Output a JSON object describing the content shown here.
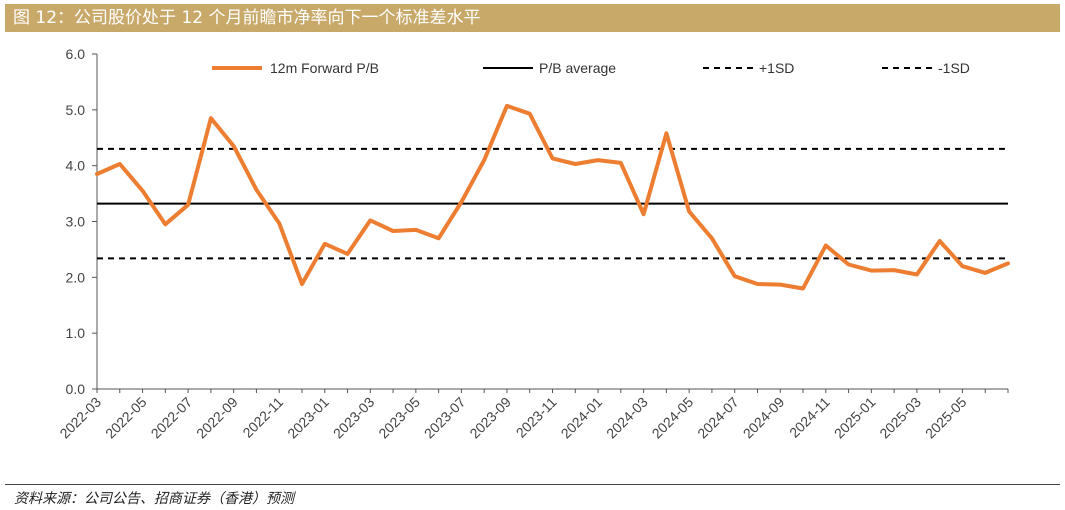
{
  "header": {
    "title": "图 12：公司股价处于 12 个月前瞻市净率向下一个标准差水平"
  },
  "footer": {
    "source": "资料来源：公司公告、招商证券（香港）预测"
  },
  "colors": {
    "series": "#ed7d31",
    "average": "#000000",
    "band": "#000000",
    "title_bg": "#c8a96a"
  },
  "chart_data": {
    "type": "line",
    "title": "",
    "xlabel": "",
    "ylabel": "",
    "ylim": [
      0,
      6
    ],
    "yticks": [
      "0.0",
      "1.0",
      "2.0",
      "3.0",
      "4.0",
      "5.0",
      "6.0"
    ],
    "xtick_labels": [
      "2022-03",
      "2022-05",
      "2022-07",
      "2022-09",
      "2022-11",
      "2023-01",
      "2023-03",
      "2023-05",
      "2023-07",
      "2023-09",
      "2023-11",
      "2024-01",
      "2024-03",
      "2024-05",
      "2024-07",
      "2024-09",
      "2024-11",
      "2025-01",
      "2025-03",
      "2025-05"
    ],
    "legend": [
      "12m Forward P/B",
      "P/B average",
      "+1SD",
      "-1SD"
    ],
    "series": [
      {
        "name": "12m Forward P/B",
        "values": [
          3.85,
          4.03,
          3.55,
          2.95,
          3.3,
          4.85,
          4.35,
          3.57,
          2.97,
          1.88,
          2.6,
          2.42,
          3.02,
          2.83,
          2.85,
          2.7,
          3.35,
          4.1,
          5.07,
          4.93,
          4.13,
          4.03,
          4.1,
          4.05,
          3.13,
          4.58,
          3.18,
          2.7,
          2.02,
          1.88,
          1.87,
          1.8,
          2.57,
          2.23,
          2.12,
          2.13,
          2.05,
          2.65,
          2.2,
          2.08,
          2.25
        ]
      }
    ],
    "average": 3.32,
    "plus_1sd": 4.3,
    "minus_1sd": 2.34
  }
}
